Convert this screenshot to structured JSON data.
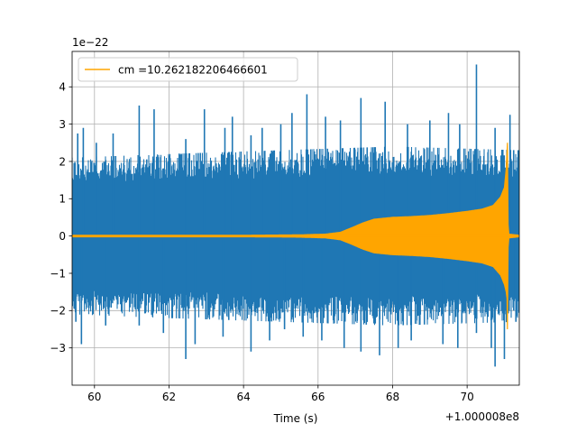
{
  "chart_data": {
    "type": "line",
    "title": "",
    "xlabel": "Time (s)",
    "ylabel": "",
    "x_offset_label": "+1.000008e8",
    "y_scale_label": "1e−22",
    "xlim": [
      59.4,
      71.4
    ],
    "ylim": [
      -4.0,
      4.95
    ],
    "grid": true,
    "legend_placement": "upper-left",
    "x_ticks": [
      60,
      62,
      64,
      66,
      68,
      70
    ],
    "x_tick_labels": [
      "60",
      "62",
      "64",
      "66",
      "68",
      "70"
    ],
    "y_ticks": [
      -3,
      -2,
      -1,
      0,
      1,
      2,
      3,
      4
    ],
    "y_tick_labels": [
      "−3",
      "−2",
      "−1",
      "0",
      "1",
      "2",
      "3",
      "4"
    ],
    "series": [
      {
        "name": "",
        "color": "#1f77b4",
        "description_values": {
          "envelope_upper": [
            [
              59.4,
              2.1
            ],
            [
              62.0,
              2.2
            ],
            [
              65.0,
              2.3
            ],
            [
              68.0,
              2.4
            ],
            [
              71.4,
              2.3
            ]
          ],
          "envelope_lower": [
            [
              59.4,
              -2.1
            ],
            [
              62.0,
              -2.2
            ],
            [
              65.0,
              -2.3
            ],
            [
              68.0,
              -2.4
            ],
            [
              71.4,
              -2.3
            ]
          ],
          "peaks": [
            [
              59.55,
              2.75
            ],
            [
              59.7,
              2.9
            ],
            [
              60.05,
              2.5
            ],
            [
              60.5,
              2.75
            ],
            [
              61.2,
              3.5
            ],
            [
              61.6,
              3.4
            ],
            [
              62.45,
              2.6
            ],
            [
              62.95,
              3.4
            ],
            [
              63.5,
              2.9
            ],
            [
              63.7,
              3.2
            ],
            [
              64.2,
              2.7
            ],
            [
              64.5,
              2.9
            ],
            [
              65.0,
              3.0
            ],
            [
              65.3,
              3.3
            ],
            [
              65.7,
              3.8
            ],
            [
              66.2,
              3.2
            ],
            [
              66.6,
              3.1
            ],
            [
              67.15,
              3.7
            ],
            [
              67.8,
              3.6
            ],
            [
              68.4,
              3.0
            ],
            [
              69.0,
              3.1
            ],
            [
              69.5,
              3.3
            ],
            [
              69.8,
              3.0
            ],
            [
              70.25,
              4.6
            ],
            [
              70.75,
              2.9
            ],
            [
              71.15,
              3.25
            ]
          ],
          "troughs": [
            [
              59.5,
              -2.3
            ],
            [
              59.65,
              -2.9
            ],
            [
              60.3,
              -2.4
            ],
            [
              61.2,
              -2.4
            ],
            [
              61.85,
              -2.6
            ],
            [
              62.45,
              -3.3
            ],
            [
              62.7,
              -2.9
            ],
            [
              63.45,
              -2.7
            ],
            [
              64.2,
              -3.1
            ],
            [
              64.7,
              -2.8
            ],
            [
              65.1,
              -2.5
            ],
            [
              65.6,
              -2.7
            ],
            [
              66.1,
              -2.8
            ],
            [
              66.7,
              -3.0
            ],
            [
              67.15,
              -3.1
            ],
            [
              67.65,
              -3.2
            ],
            [
              68.15,
              -3.0
            ],
            [
              68.5,
              -2.8
            ],
            [
              69.35,
              -2.9
            ],
            [
              69.75,
              -3.0
            ],
            [
              70.25,
              -2.6
            ],
            [
              70.65,
              -3.0
            ],
            [
              70.75,
              -3.5
            ],
            [
              71.0,
              -3.3
            ],
            [
              71.25,
              -2.0
            ]
          ]
        }
      },
      {
        "name": "cm =10.262182206466601",
        "color": "#ffa500",
        "description_values": {
          "envelope": [
            [
              59.4,
              0.02
            ],
            [
              64.0,
              0.02
            ],
            [
              65.5,
              0.03
            ],
            [
              66.2,
              0.05
            ],
            [
              66.6,
              0.1
            ],
            [
              66.9,
              0.22
            ],
            [
              67.2,
              0.35
            ],
            [
              67.5,
              0.45
            ],
            [
              68.0,
              0.5
            ],
            [
              68.5,
              0.52
            ],
            [
              69.0,
              0.55
            ],
            [
              69.5,
              0.6
            ],
            [
              70.0,
              0.66
            ],
            [
              70.4,
              0.72
            ],
            [
              70.7,
              0.82
            ],
            [
              70.9,
              1.05
            ],
            [
              71.0,
              1.3
            ],
            [
              71.05,
              1.8
            ],
            [
              71.08,
              2.5
            ],
            [
              71.1,
              0.3
            ],
            [
              71.12,
              0.05
            ],
            [
              71.4,
              0.02
            ]
          ],
          "lower_asymmetry": [
            [
              71.0,
              -1.3
            ],
            [
              71.05,
              -1.5
            ],
            [
              71.08,
              -1.75
            ]
          ]
        }
      }
    ]
  }
}
